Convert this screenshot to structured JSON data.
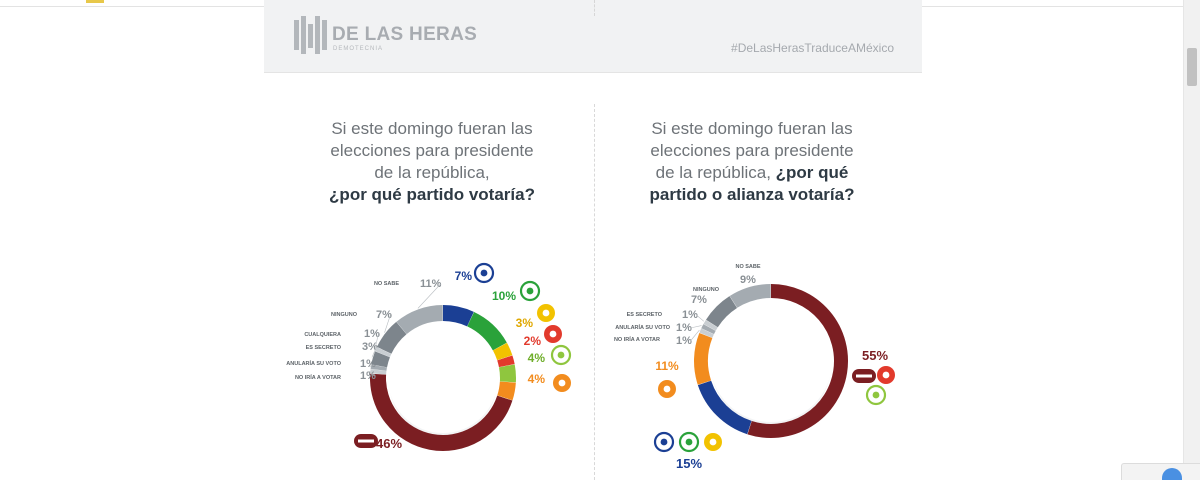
{
  "header": {
    "brand": "DE LAS HERAS",
    "brand_sub": "DEMOTECNIA",
    "hashtag": "#DeLasHerasTraduceAMéxico"
  },
  "left": {
    "question_line1": "Si este domingo fueran las",
    "question_line2": "elecciones para presidente",
    "question_line3": "de la república,",
    "question_bold": "¿por qué partido votaría?"
  },
  "right": {
    "question_line1": "Si este domingo fueran las",
    "question_line2": "elecciones para presidente",
    "question_line3": "de la república, ",
    "question_bold_a": "¿por qué",
    "question_bold_b": "partido o alianza votaría?"
  },
  "colors": {
    "morena": "#7b1e22",
    "pan": "#1b3f94",
    "pri": "#2aa23a",
    "prd": "#f2c200",
    "pt": "#e23a2c",
    "pvem": "#8fc63e",
    "mc": "#f28c1e",
    "gray_dark": "#7d858c",
    "gray_mid": "#a4abb1",
    "gray_light": "#c9ced2"
  },
  "chart_data": [
    {
      "type": "pie",
      "variant": "donut",
      "title": "¿por qué partido votaría?",
      "slices": [
        {
          "label": "PAN",
          "value": 7,
          "value_label": "7%",
          "color": "#1b3f94",
          "icon": "pan-logo"
        },
        {
          "label": "PRI",
          "value": 10,
          "value_label": "10%",
          "color": "#2aa23a",
          "icon": "pri-logo"
        },
        {
          "label": "PRD",
          "value": 3,
          "value_label": "3%",
          "color": "#f2c200",
          "icon": "prd-logo"
        },
        {
          "label": "PT",
          "value": 2,
          "value_label": "2%",
          "color": "#e23a2c",
          "icon": "pt-logo"
        },
        {
          "label": "PVEM",
          "value": 4,
          "value_label": "4%",
          "color": "#8fc63e",
          "icon": "pvem-logo"
        },
        {
          "label": "MC",
          "value": 4,
          "value_label": "4%",
          "color": "#f28c1e",
          "icon": "mc-logo"
        },
        {
          "label": "MORENA",
          "value": 46,
          "value_label": "46%",
          "color": "#7b1e22",
          "icon": "morena-logo"
        },
        {
          "label": "NO IRÍA A VOTAR",
          "value": 1,
          "value_label": "1%",
          "color": "#c9ced2"
        },
        {
          "label": "ANULARÍA SU VOTO",
          "value": 1,
          "value_label": "1%",
          "color": "#a4abb1"
        },
        {
          "label": "ES SECRETO",
          "value": 3,
          "value_label": "3%",
          "color": "#7d858c"
        },
        {
          "label": "CUALQUIERA",
          "value": 1,
          "value_label": "1%",
          "color": "#c9ced2"
        },
        {
          "label": "NINGUNO",
          "value": 7,
          "value_label": "7%",
          "color": "#7d858c"
        },
        {
          "label": "NO SABE",
          "value": 11,
          "value_label": "11%",
          "color": "#a4abb1"
        }
      ]
    },
    {
      "type": "pie",
      "variant": "donut",
      "title": "¿por qué partido o alianza votaría?",
      "slices": [
        {
          "label": "MORENA-PT-PES",
          "value": 55,
          "value_label": "55%",
          "color": "#7b1e22",
          "icons": [
            "morena-logo",
            "pt-logo",
            "pvem-logo"
          ]
        },
        {
          "label": "PAN-PRI-PRD",
          "value": 15,
          "value_label": "15%",
          "color": "#1b3f94",
          "icons": [
            "pan-logo",
            "pri-logo",
            "prd-logo"
          ]
        },
        {
          "label": "MC",
          "value": 11,
          "value_label": "11%",
          "color": "#f28c1e",
          "icon": "mc-logo"
        },
        {
          "label": "NO IRÍA A VOTAR",
          "value": 1,
          "value_label": "1%",
          "color": "#c9ced2"
        },
        {
          "label": "ANULARÍA SU VOTO",
          "value": 1,
          "value_label": "1%",
          "color": "#a4abb1"
        },
        {
          "label": "ES SECRETO",
          "value": 1,
          "value_label": "1%",
          "color": "#c9ced2"
        },
        {
          "label": "NINGUNO",
          "value": 7,
          "value_label": "7%",
          "color": "#7d858c"
        },
        {
          "label": "NO SABE",
          "value": 9,
          "value_label": "9%",
          "color": "#a4abb1"
        }
      ]
    }
  ]
}
